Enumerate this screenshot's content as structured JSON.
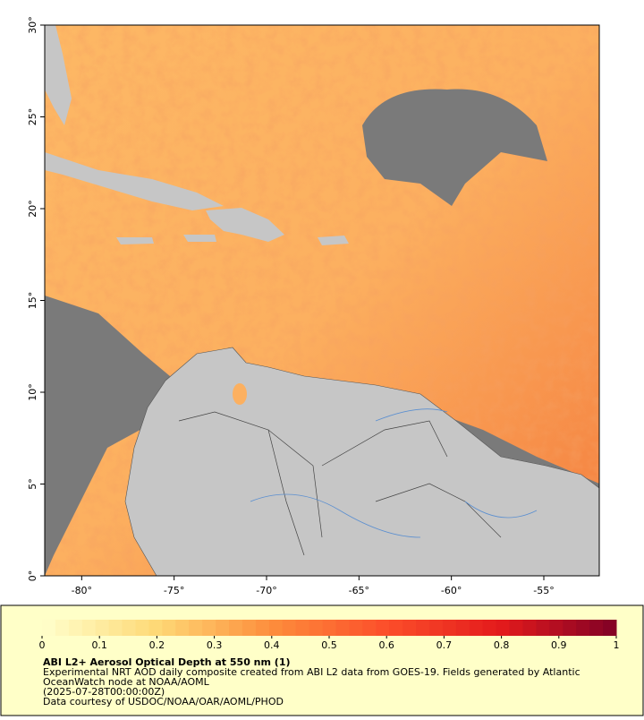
{
  "map": {
    "xlim": [
      -82,
      -52
    ],
    "ylim": [
      0,
      30
    ],
    "xticks": [
      {
        "value": -80,
        "label": "-80°"
      },
      {
        "value": -75,
        "label": "-75°"
      },
      {
        "value": -70,
        "label": "-70°"
      },
      {
        "value": -65,
        "label": "-65°"
      },
      {
        "value": -60,
        "label": "-60°"
      },
      {
        "value": -55,
        "label": "-55°"
      }
    ],
    "yticks": [
      {
        "value": 0,
        "label": "0°"
      },
      {
        "value": 5,
        "label": "5°"
      },
      {
        "value": 10,
        "label": "10°"
      },
      {
        "value": 15,
        "label": "15°"
      },
      {
        "value": 20,
        "label": "20°"
      },
      {
        "value": 25,
        "label": "25°"
      },
      {
        "value": 30,
        "label": "30°"
      }
    ]
  },
  "colorbar": {
    "lim": [
      0,
      1
    ],
    "ticks": [
      0,
      0.1,
      0.2,
      0.3,
      0.4,
      0.5,
      0.6,
      0.7,
      0.8,
      0.9,
      1
    ],
    "colors": [
      "#ffffcc",
      "#fed976",
      "#fd8d3c",
      "#fc4e2a",
      "#e31a1c",
      "#800026"
    ]
  },
  "caption": {
    "title": "ABI L2+ Aerosol Optical Depth at 550 nm (1)",
    "lines": [
      "Experimental NRT AOD daily composite created from ABI L2 data from GOES-19. Fields generated by Atlantic",
      "OceanWatch node at NOAA/AOML",
      "(2025-07-28T00:00:00Z)",
      "Data courtesy of USDOC/NOAA/OAR/AOML/PHOD"
    ]
  }
}
